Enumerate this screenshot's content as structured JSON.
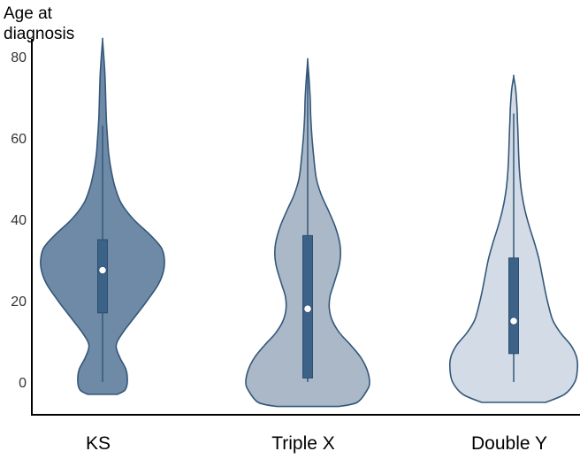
{
  "chart_data": {
    "type": "violin",
    "ylabel_lines": [
      "Age at",
      "diagnosis"
    ],
    "ylim": [
      -6,
      85
    ],
    "yticks": [
      0,
      20,
      40,
      60,
      80
    ],
    "categories": [
      "KS",
      "Triple X",
      "Double Y"
    ],
    "series": [
      {
        "category": "KS",
        "color": "#6f8aa6",
        "min": 0,
        "q1": 17,
        "median": 27.5,
        "q3": 35,
        "max": 63,
        "violin_range": [
          -3,
          84
        ],
        "profile": [
          [
            -3,
            0.24
          ],
          [
            -2,
            0.36
          ],
          [
            0,
            0.4
          ],
          [
            3,
            0.38
          ],
          [
            6,
            0.28
          ],
          [
            9,
            0.22
          ],
          [
            12,
            0.32
          ],
          [
            16,
            0.52
          ],
          [
            20,
            0.72
          ],
          [
            24,
            0.9
          ],
          [
            27,
            0.98
          ],
          [
            30,
            1.0
          ],
          [
            33,
            0.95
          ],
          [
            36,
            0.78
          ],
          [
            40,
            0.5
          ],
          [
            44,
            0.3
          ],
          [
            48,
            0.2
          ],
          [
            52,
            0.14
          ],
          [
            56,
            0.1
          ],
          [
            60,
            0.08
          ],
          [
            65,
            0.06
          ],
          [
            70,
            0.05
          ],
          [
            75,
            0.04
          ],
          [
            80,
            0.02
          ],
          [
            84,
            0.0
          ]
        ]
      },
      {
        "category": "Triple X",
        "color": "#aab8c8",
        "min": 0,
        "q1": 1,
        "median": 18,
        "q3": 36,
        "max": 79,
        "violin_range": [
          -6,
          79
        ],
        "profile": [
          [
            -6,
            0.5
          ],
          [
            -5,
            0.8
          ],
          [
            -2,
            0.96
          ],
          [
            0,
            1.0
          ],
          [
            3,
            0.96
          ],
          [
            6,
            0.86
          ],
          [
            9,
            0.7
          ],
          [
            12,
            0.52
          ],
          [
            15,
            0.4
          ],
          [
            18,
            0.35
          ],
          [
            21,
            0.36
          ],
          [
            24,
            0.42
          ],
          [
            28,
            0.5
          ],
          [
            31,
            0.53
          ],
          [
            34,
            0.52
          ],
          [
            38,
            0.45
          ],
          [
            42,
            0.34
          ],
          [
            46,
            0.22
          ],
          [
            50,
            0.14
          ],
          [
            55,
            0.1
          ],
          [
            60,
            0.07
          ],
          [
            65,
            0.05
          ],
          [
            70,
            0.04
          ],
          [
            75,
            0.02
          ],
          [
            79,
            0.0
          ]
        ]
      },
      {
        "category": "Double Y",
        "color": "#d3dce6",
        "min": 0,
        "q1": 7,
        "median": 15,
        "q3": 30.5,
        "max": 66,
        "violin_range": [
          -5,
          75
        ],
        "profile": [
          [
            -5,
            0.5
          ],
          [
            -3,
            0.8
          ],
          [
            0,
            0.96
          ],
          [
            3,
            1.0
          ],
          [
            6,
            0.99
          ],
          [
            9,
            0.9
          ],
          [
            12,
            0.74
          ],
          [
            15,
            0.62
          ],
          [
            18,
            0.56
          ],
          [
            22,
            0.5
          ],
          [
            26,
            0.45
          ],
          [
            30,
            0.4
          ],
          [
            34,
            0.33
          ],
          [
            38,
            0.25
          ],
          [
            42,
            0.18
          ],
          [
            46,
            0.13
          ],
          [
            50,
            0.1
          ],
          [
            55,
            0.08
          ],
          [
            60,
            0.07
          ],
          [
            64,
            0.06
          ],
          [
            68,
            0.05
          ],
          [
            72,
            0.03
          ],
          [
            75,
            0.0
          ]
        ]
      }
    ]
  }
}
